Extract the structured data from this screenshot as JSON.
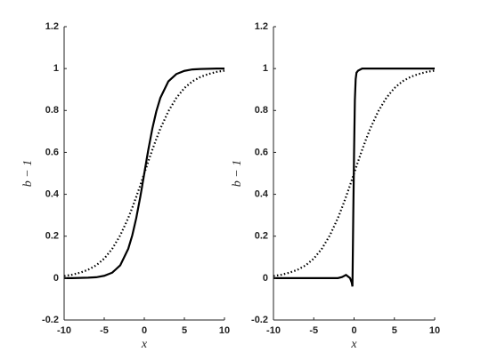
{
  "chart_data": [
    {
      "type": "line",
      "xlabel": "x",
      "ylabel": "b − 1",
      "x": [
        -10,
        -9,
        -8,
        -7,
        -6,
        -5,
        -4,
        -3,
        -2,
        -1.5,
        -1,
        -0.5,
        -0.3,
        -0.2,
        -0.1,
        0,
        0.1,
        0.2,
        0.3,
        0.5,
        1,
        1.5,
        2,
        3,
        4,
        5,
        6,
        7,
        8,
        9,
        10
      ],
      "series": [
        {
          "color": "#000000",
          "style": "solid",
          "values": [
            0,
            0,
            0.001,
            0.002,
            0.004,
            0.011,
            0.026,
            0.061,
            0.14,
            0.204,
            0.287,
            0.388,
            0.432,
            0.455,
            0.477,
            0.5,
            0.523,
            0.545,
            0.568,
            0.612,
            0.713,
            0.796,
            0.86,
            0.939,
            0.974,
            0.989,
            0.996,
            0.998,
            0.999,
            1,
            1
          ]
        },
        {
          "color": "#000000",
          "style": "dotted",
          "values": [
            0.01,
            0.016,
            0.026,
            0.04,
            0.061,
            0.093,
            0.14,
            0.204,
            0.287,
            0.336,
            0.388,
            0.443,
            0.466,
            0.477,
            0.489,
            0.5,
            0.511,
            0.523,
            0.534,
            0.557,
            0.612,
            0.664,
            0.713,
            0.796,
            0.86,
            0.907,
            0.939,
            0.96,
            0.974,
            0.984,
            0.99
          ]
        }
      ],
      "xlim": [
        -10,
        10
      ],
      "xticks": [
        -10,
        -5,
        0,
        5,
        10
      ],
      "ylim": [
        -0.2,
        1.2
      ],
      "yticks": [
        -0.2,
        0,
        0.2,
        0.4,
        0.6,
        0.8,
        1,
        1.2
      ]
    },
    {
      "type": "line",
      "xlabel": "x",
      "ylabel": "b − 1",
      "x": [
        -10,
        -9,
        -8,
        -7,
        -6,
        -5,
        -4,
        -3,
        -2,
        -1.5,
        -1,
        -0.5,
        -0.3,
        -0.2,
        -0.1,
        0,
        0.1,
        0.2,
        0.3,
        0.5,
        1,
        1.5,
        2,
        3,
        4,
        5,
        6,
        7,
        8,
        9,
        10
      ],
      "series": [
        {
          "color": "#000000",
          "style": "solid",
          "values": [
            0,
            0,
            0,
            0,
            0,
            0,
            0,
            0,
            0,
            0.005,
            0.015,
            0,
            -0.02,
            -0.04,
            0.3,
            0.6,
            0.85,
            0.95,
            0.98,
            0.99,
            1,
            1,
            1,
            1,
            1,
            1,
            1,
            1,
            1,
            1,
            1
          ]
        },
        {
          "color": "#000000",
          "style": "dotted",
          "values": [
            0.01,
            0.016,
            0.026,
            0.04,
            0.061,
            0.093,
            0.14,
            0.204,
            0.287,
            0.336,
            0.388,
            0.443,
            0.466,
            0.477,
            0.489,
            0.5,
            0.511,
            0.523,
            0.534,
            0.557,
            0.612,
            0.664,
            0.713,
            0.796,
            0.86,
            0.907,
            0.939,
            0.96,
            0.974,
            0.984,
            0.99
          ]
        }
      ],
      "xlim": [
        -10,
        10
      ],
      "xticks": [
        -10,
        -5,
        0,
        5,
        10
      ],
      "ylim": [
        -0.2,
        1.2
      ],
      "yticks": [
        -0.2,
        0,
        0.2,
        0.4,
        0.6,
        0.8,
        1,
        1.2
      ]
    }
  ]
}
